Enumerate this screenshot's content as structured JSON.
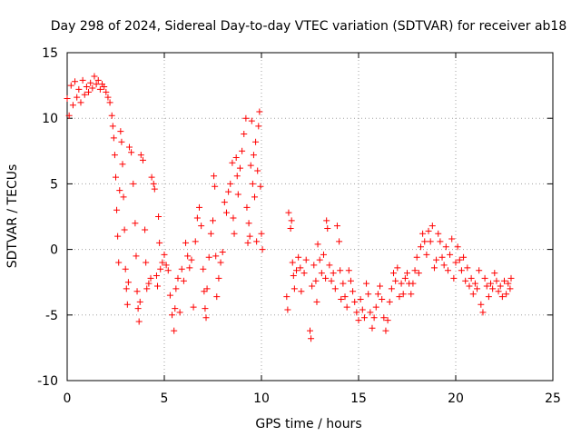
{
  "chart_data": {
    "type": "scatter",
    "title": "Day 298 of 2024, Sidereal Day-to-day VTEC variation (SDTVAR) for receiver ab18",
    "xlabel": "GPS time / hours",
    "ylabel": "SDTVAR / TECUs",
    "xlim": [
      0,
      25
    ],
    "ylim": [
      -10,
      15
    ],
    "xticks": [
      "0",
      "5",
      "10",
      "15",
      "20",
      "25"
    ],
    "yticks": [
      "-10",
      "-5",
      "0",
      "5",
      "10",
      "15"
    ],
    "grid": true,
    "marker": "plus",
    "series": [
      {
        "name": "SDTVAR",
        "color": "#ff0000",
        "points": [
          [
            0.0,
            11.5
          ],
          [
            0.1,
            10.2
          ],
          [
            0.2,
            12.5
          ],
          [
            0.3,
            11.0
          ],
          [
            0.4,
            12.8
          ],
          [
            0.5,
            11.6
          ],
          [
            0.6,
            12.2
          ],
          [
            0.7,
            11.2
          ],
          [
            0.8,
            12.9
          ],
          [
            0.9,
            11.8
          ],
          [
            1.0,
            12.4
          ],
          [
            1.1,
            12.0
          ],
          [
            1.2,
            12.7
          ],
          [
            1.3,
            12.3
          ],
          [
            1.4,
            13.2
          ],
          [
            1.5,
            12.6
          ],
          [
            1.6,
            12.9
          ],
          [
            1.7,
            12.2
          ],
          [
            1.8,
            12.6
          ],
          [
            1.9,
            12.4
          ],
          [
            2.0,
            12.0
          ],
          [
            2.1,
            11.6
          ],
          [
            2.2,
            11.2
          ],
          [
            2.3,
            10.2
          ],
          [
            2.35,
            9.4
          ],
          [
            2.4,
            8.5
          ],
          [
            2.45,
            7.2
          ],
          [
            2.5,
            5.5
          ],
          [
            2.55,
            3.0
          ],
          [
            2.6,
            1.0
          ],
          [
            2.65,
            -1.0
          ],
          [
            2.7,
            4.5
          ],
          [
            2.75,
            9.0
          ],
          [
            2.8,
            8.2
          ],
          [
            2.85,
            6.5
          ],
          [
            2.9,
            4.0
          ],
          [
            2.95,
            1.5
          ],
          [
            3.0,
            -1.5
          ],
          [
            3.05,
            -3.0
          ],
          [
            3.1,
            -4.2
          ],
          [
            3.15,
            -2.5
          ],
          [
            3.2,
            7.8
          ],
          [
            3.3,
            7.4
          ],
          [
            3.4,
            5.0
          ],
          [
            3.5,
            2.0
          ],
          [
            3.55,
            -0.5
          ],
          [
            3.6,
            -3.2
          ],
          [
            3.65,
            -4.5
          ],
          [
            3.7,
            -5.5
          ],
          [
            3.75,
            -4.0
          ],
          [
            3.8,
            7.2
          ],
          [
            3.9,
            6.8
          ],
          [
            4.0,
            1.5
          ],
          [
            4.05,
            -1.0
          ],
          [
            4.1,
            -3.0
          ],
          [
            4.2,
            -2.6
          ],
          [
            4.3,
            -2.2
          ],
          [
            4.35,
            5.5
          ],
          [
            4.45,
            5.0
          ],
          [
            4.5,
            4.6
          ],
          [
            4.6,
            -2.0
          ],
          [
            4.65,
            -2.8
          ],
          [
            4.7,
            2.5
          ],
          [
            4.75,
            0.5
          ],
          [
            4.8,
            -1.5
          ],
          [
            4.9,
            -1.0
          ],
          [
            5.0,
            -0.4
          ],
          [
            5.1,
            -1.2
          ],
          [
            5.2,
            -1.6
          ],
          [
            5.3,
            -3.5
          ],
          [
            5.4,
            -5.0
          ],
          [
            5.5,
            -6.2
          ],
          [
            5.55,
            -4.5
          ],
          [
            5.6,
            -3.0
          ],
          [
            5.7,
            -2.2
          ],
          [
            5.8,
            -4.8
          ],
          [
            5.9,
            -1.5
          ],
          [
            6.0,
            -2.4
          ],
          [
            6.1,
            0.5
          ],
          [
            6.2,
            -0.5
          ],
          [
            6.3,
            -1.4
          ],
          [
            6.4,
            -0.8
          ],
          [
            6.5,
            -4.4
          ],
          [
            6.6,
            0.6
          ],
          [
            6.7,
            2.4
          ],
          [
            6.8,
            3.2
          ],
          [
            6.9,
            1.8
          ],
          [
            7.0,
            -1.5
          ],
          [
            7.05,
            -3.2
          ],
          [
            7.1,
            -4.5
          ],
          [
            7.15,
            -5.2
          ],
          [
            7.2,
            -3.0
          ],
          [
            7.3,
            -0.6
          ],
          [
            7.4,
            1.2
          ],
          [
            7.5,
            2.2
          ],
          [
            7.55,
            5.6
          ],
          [
            7.6,
            4.8
          ],
          [
            7.65,
            -0.5
          ],
          [
            7.7,
            -3.6
          ],
          [
            7.8,
            -2.2
          ],
          [
            7.9,
            -1.0
          ],
          [
            8.0,
            -0.2
          ],
          [
            8.1,
            3.6
          ],
          [
            8.2,
            2.8
          ],
          [
            8.3,
            4.4
          ],
          [
            8.4,
            5.0
          ],
          [
            8.5,
            6.6
          ],
          [
            8.55,
            2.4
          ],
          [
            8.6,
            1.2
          ],
          [
            8.7,
            7.0
          ],
          [
            8.75,
            5.6
          ],
          [
            8.8,
            4.2
          ],
          [
            8.9,
            6.2
          ],
          [
            9.0,
            7.5
          ],
          [
            9.1,
            8.8
          ],
          [
            9.2,
            10.0
          ],
          [
            9.25,
            3.2
          ],
          [
            9.3,
            0.5
          ],
          [
            9.35,
            2.0
          ],
          [
            9.4,
            1.0
          ],
          [
            9.45,
            6.4
          ],
          [
            9.5,
            9.8
          ],
          [
            9.55,
            5.0
          ],
          [
            9.6,
            7.2
          ],
          [
            9.65,
            4.0
          ],
          [
            9.7,
            8.2
          ],
          [
            9.75,
            0.6
          ],
          [
            9.8,
            6.0
          ],
          [
            9.85,
            9.4
          ],
          [
            9.9,
            10.5
          ],
          [
            9.95,
            4.8
          ],
          [
            10.0,
            1.2
          ],
          [
            10.05,
            0.0
          ],
          [
            11.3,
            -3.6
          ],
          [
            11.35,
            -4.6
          ],
          [
            11.4,
            2.8
          ],
          [
            11.5,
            1.6
          ],
          [
            11.55,
            2.2
          ],
          [
            11.6,
            -1.0
          ],
          [
            11.65,
            -2.0
          ],
          [
            11.7,
            -3.0
          ],
          [
            11.8,
            -1.6
          ],
          [
            11.9,
            -0.6
          ],
          [
            12.0,
            -1.4
          ],
          [
            12.05,
            -3.2
          ],
          [
            12.2,
            -1.8
          ],
          [
            12.3,
            -0.8
          ],
          [
            12.5,
            -6.2
          ],
          [
            12.55,
            -6.8
          ],
          [
            12.6,
            -2.8
          ],
          [
            12.7,
            -1.2
          ],
          [
            12.8,
            -2.4
          ],
          [
            12.85,
            -4.0
          ],
          [
            12.9,
            0.4
          ],
          [
            13.0,
            -0.8
          ],
          [
            13.1,
            -1.8
          ],
          [
            13.2,
            -0.4
          ],
          [
            13.3,
            -2.2
          ],
          [
            13.35,
            2.2
          ],
          [
            13.4,
            1.6
          ],
          [
            13.5,
            -1.2
          ],
          [
            13.6,
            -2.4
          ],
          [
            13.7,
            -1.8
          ],
          [
            13.8,
            -3.0
          ],
          [
            13.9,
            1.8
          ],
          [
            14.0,
            0.6
          ],
          [
            14.05,
            -1.6
          ],
          [
            14.1,
            -3.8
          ],
          [
            14.2,
            -2.6
          ],
          [
            14.3,
            -3.6
          ],
          [
            14.4,
            -4.4
          ],
          [
            14.5,
            -1.6
          ],
          [
            14.6,
            -2.4
          ],
          [
            14.7,
            -3.2
          ],
          [
            14.8,
            -4.0
          ],
          [
            14.9,
            -4.8
          ],
          [
            15.0,
            -5.4
          ],
          [
            15.1,
            -3.8
          ],
          [
            15.2,
            -4.6
          ],
          [
            15.3,
            -5.2
          ],
          [
            15.4,
            -2.6
          ],
          [
            15.5,
            -3.4
          ],
          [
            15.6,
            -4.8
          ],
          [
            15.7,
            -6.0
          ],
          [
            15.8,
            -5.2
          ],
          [
            15.9,
            -4.4
          ],
          [
            16.0,
            -3.4
          ],
          [
            16.1,
            -2.8
          ],
          [
            16.2,
            -3.8
          ],
          [
            16.3,
            -5.2
          ],
          [
            16.4,
            -6.2
          ],
          [
            16.5,
            -5.4
          ],
          [
            16.6,
            -4.0
          ],
          [
            16.7,
            -3.0
          ],
          [
            16.8,
            -1.8
          ],
          [
            16.9,
            -2.4
          ],
          [
            17.0,
            -1.4
          ],
          [
            17.1,
            -3.6
          ],
          [
            17.2,
            -2.6
          ],
          [
            17.3,
            -3.4
          ],
          [
            17.4,
            -2.2
          ],
          [
            17.5,
            -1.8
          ],
          [
            17.6,
            -2.6
          ],
          [
            17.7,
            -3.4
          ],
          [
            17.8,
            -2.6
          ],
          [
            17.9,
            -1.6
          ],
          [
            18.0,
            -0.6
          ],
          [
            18.1,
            -1.8
          ],
          [
            18.2,
            0.2
          ],
          [
            18.3,
            1.2
          ],
          [
            18.4,
            0.6
          ],
          [
            18.5,
            -0.4
          ],
          [
            18.6,
            1.4
          ],
          [
            18.7,
            0.6
          ],
          [
            18.8,
            1.8
          ],
          [
            18.9,
            -1.4
          ],
          [
            19.0,
            -0.8
          ],
          [
            19.1,
            1.2
          ],
          [
            19.2,
            0.6
          ],
          [
            19.3,
            -0.6
          ],
          [
            19.4,
            -1.2
          ],
          [
            19.5,
            0.2
          ],
          [
            19.6,
            -1.6
          ],
          [
            19.7,
            -0.4
          ],
          [
            19.8,
            0.8
          ],
          [
            19.9,
            -2.2
          ],
          [
            20.0,
            -1.0
          ],
          [
            20.1,
            0.2
          ],
          [
            20.2,
            -0.8
          ],
          [
            20.3,
            -1.6
          ],
          [
            20.4,
            -0.6
          ],
          [
            20.5,
            -2.4
          ],
          [
            20.6,
            -1.4
          ],
          [
            20.7,
            -2.8
          ],
          [
            20.8,
            -2.2
          ],
          [
            20.9,
            -3.4
          ],
          [
            21.0,
            -2.6
          ],
          [
            21.1,
            -3.0
          ],
          [
            21.2,
            -1.6
          ],
          [
            21.3,
            -4.2
          ],
          [
            21.4,
            -4.8
          ],
          [
            21.5,
            -2.2
          ],
          [
            21.6,
            -2.8
          ],
          [
            21.7,
            -3.6
          ],
          [
            21.8,
            -2.6
          ],
          [
            21.9,
            -3.0
          ],
          [
            22.0,
            -1.8
          ],
          [
            22.1,
            -2.4
          ],
          [
            22.2,
            -3.2
          ],
          [
            22.3,
            -2.8
          ],
          [
            22.4,
            -3.6
          ],
          [
            22.5,
            -2.4
          ],
          [
            22.6,
            -3.4
          ],
          [
            22.7,
            -2.6
          ],
          [
            22.8,
            -3.0
          ],
          [
            22.85,
            -2.2
          ]
        ]
      }
    ]
  }
}
